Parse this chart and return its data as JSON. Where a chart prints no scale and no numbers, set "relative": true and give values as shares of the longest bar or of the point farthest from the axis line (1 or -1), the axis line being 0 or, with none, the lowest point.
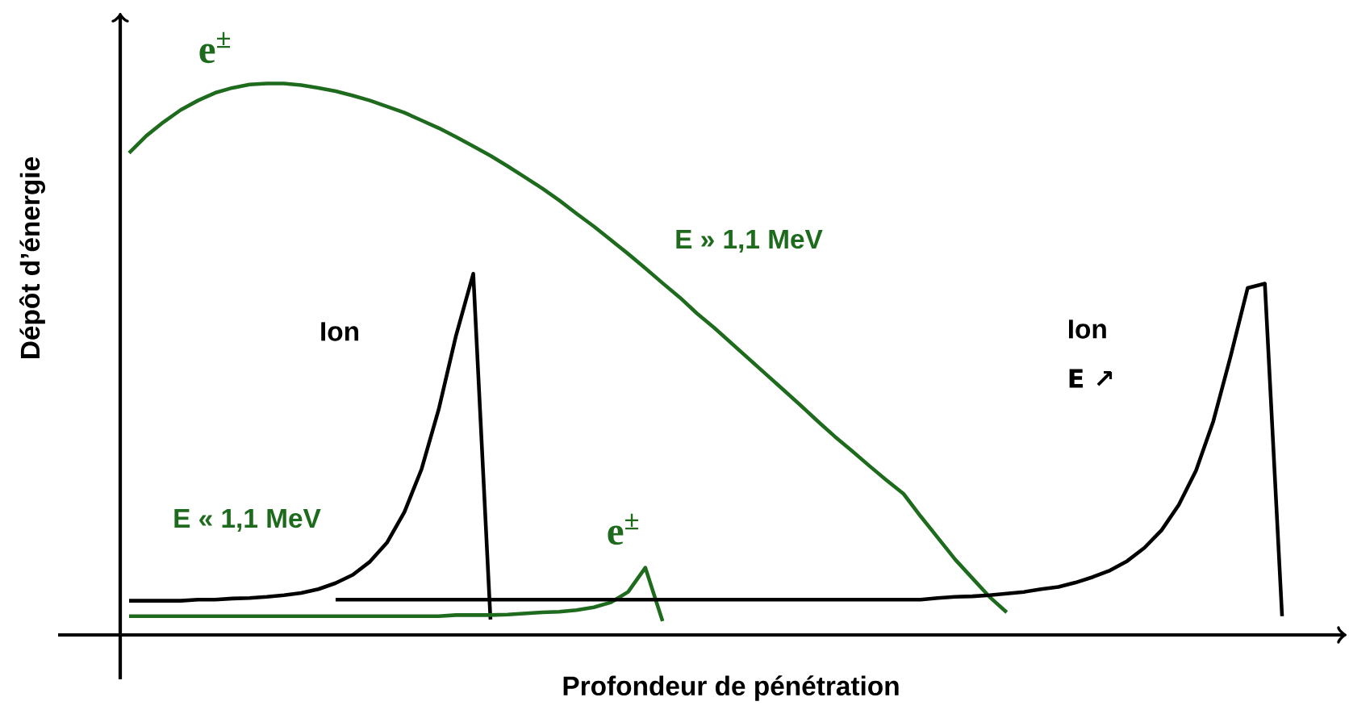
{
  "chart_data": {
    "type": "line",
    "relative": true,
    "xlabel": "Profondeur de pénétration",
    "ylabel": "Dépôt d’énergie",
    "categories": [
      null,
      null,
      null,
      null,
      null,
      null,
      null,
      null,
      null,
      null,
      null,
      null,
      null,
      null,
      null,
      null,
      null,
      null,
      null,
      null,
      null,
      null,
      null,
      null,
      null,
      null,
      null,
      null,
      null,
      null,
      null,
      null,
      null,
      null,
      null,
      null,
      null,
      null,
      null,
      null,
      null,
      null,
      null,
      null,
      null,
      null,
      null,
      null,
      null,
      null,
      null,
      null,
      null,
      null,
      null,
      null,
      null,
      null,
      null,
      null,
      null,
      null,
      null,
      null,
      null,
      null,
      null,
      null
    ],
    "series": [
      {
        "name": "e$^{±}$",
        "color": "#1e6b1e",
        "values": [
          0.874,
          0.905,
          0.93,
          0.952,
          0.969,
          0.983,
          0.992,
          0.998,
          1.0,
          1.0,
          0.997,
          0.992,
          0.986,
          0.978,
          0.969,
          0.958,
          0.947,
          0.933,
          0.919,
          0.903,
          0.886,
          0.869,
          0.85,
          0.83,
          0.81,
          0.788,
          0.764,
          0.741,
          0.716,
          0.691,
          0.665,
          0.638,
          0.612,
          0.583,
          0.557,
          0.529,
          0.501,
          0.473,
          0.445,
          0.417,
          0.388,
          0.36,
          0.334,
          0.307,
          0.281,
          0.256,
          0.215,
          0.176,
          0.137,
          0.103,
          0.069,
          0.041,
          null,
          null,
          null,
          null,
          null,
          null,
          null,
          null,
          null,
          null,
          null,
          null,
          null,
          null,
          null,
          null
        ]
      },
      {
        "color": "#000000",
        "values": [
          0.062,
          0.062,
          0.062,
          0.062,
          0.064,
          0.064,
          0.066,
          0.067,
          0.069,
          0.072,
          0.076,
          0.083,
          0.094,
          0.109,
          0.133,
          0.168,
          0.223,
          0.301,
          0.41,
          0.543,
          0.655,
          0.028,
          null,
          null,
          null,
          null,
          null,
          null,
          null,
          null,
          null,
          null,
          null,
          null,
          null,
          null,
          null,
          null,
          null,
          null,
          null,
          null,
          null,
          null,
          null,
          null,
          null,
          null,
          null,
          null,
          null,
          null,
          null,
          null,
          null,
          null,
          null,
          null,
          null,
          null,
          null,
          null,
          null,
          null,
          null,
          null,
          null,
          null
        ]
      },
      {
        "name": "e$^{±}$",
        "color": "#1e6b1e",
        "values": [
          0.034,
          0.034,
          0.034,
          0.034,
          0.034,
          0.034,
          0.034,
          0.034,
          0.034,
          0.034,
          0.034,
          0.034,
          0.034,
          0.034,
          0.034,
          0.034,
          0.034,
          0.034,
          0.034,
          0.036,
          0.036,
          0.036,
          0.037,
          0.039,
          0.041,
          0.042,
          0.045,
          0.05,
          0.059,
          0.078,
          0.122,
          0.025,
          null,
          null,
          null,
          null,
          null,
          null,
          null,
          null,
          null,
          null,
          null,
          null,
          null,
          null,
          null,
          null,
          null,
          null,
          null,
          null,
          null,
          null,
          null,
          null,
          null,
          null,
          null,
          null,
          null,
          null,
          null,
          null,
          null,
          null,
          null,
          null
        ]
      },
      {
        "color": "#000000",
        "values": [
          null,
          null,
          null,
          null,
          null,
          null,
          null,
          null,
          null,
          null,
          null,
          null,
          0.064,
          0.064,
          0.064,
          0.064,
          0.064,
          0.064,
          0.064,
          0.064,
          0.064,
          0.064,
          0.064,
          0.064,
          0.064,
          0.064,
          0.064,
          0.064,
          0.064,
          0.064,
          0.064,
          0.064,
          0.064,
          0.064,
          0.064,
          0.064,
          0.064,
          0.064,
          0.064,
          0.064,
          0.064,
          0.064,
          0.064,
          0.064,
          0.064,
          0.064,
          0.064,
          0.067,
          0.069,
          0.07,
          0.072,
          0.075,
          0.078,
          0.083,
          0.087,
          0.095,
          0.105,
          0.117,
          0.134,
          0.158,
          0.19,
          0.236,
          0.298,
          0.387,
          0.504,
          0.629,
          0.637,
          0.034
        ]
      }
    ],
    "annotations": [
      "E » 1,1 MeV",
      "Ion",
      "E « 1,1 MeV",
      "Ion",
      "E ↗"
    ]
  }
}
